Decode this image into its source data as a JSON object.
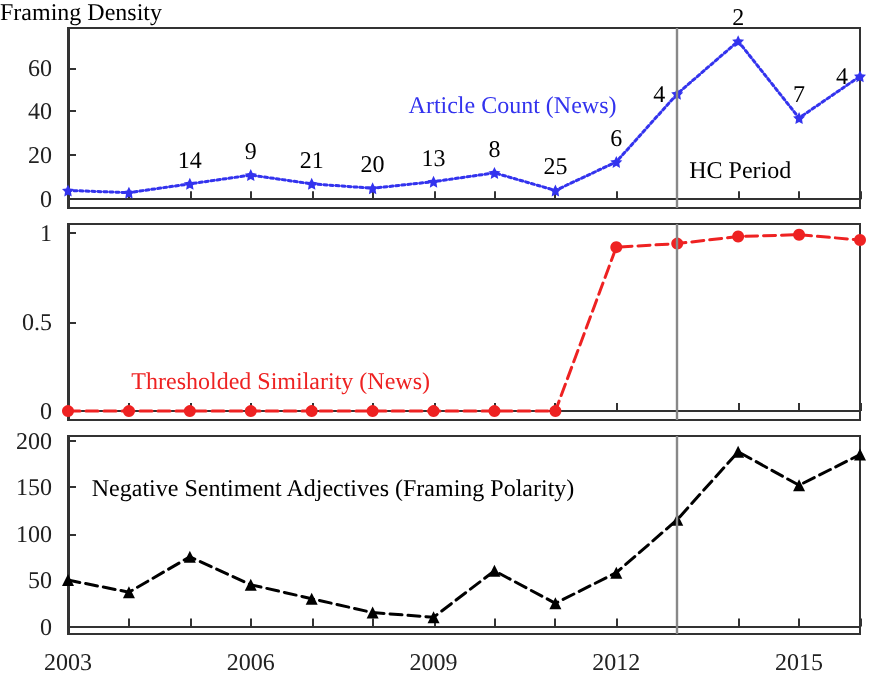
{
  "chart_data": [
    {
      "type": "line",
      "x": [
        2003,
        2004,
        2005,
        2006,
        2007,
        2008,
        2009,
        2010,
        2011,
        2012,
        2013,
        2014,
        2015,
        2016
      ],
      "series": [
        {
          "name": "Article Count (News)",
          "color": "#3333ee",
          "values": [
            4,
            3,
            7,
            11,
            7,
            5,
            8,
            12,
            4,
            17,
            48,
            72,
            37,
            56
          ],
          "marker": "star",
          "line_style": "dotted"
        }
      ],
      "xlim": [
        2003,
        2016
      ],
      "xticks": [
        2003,
        {
          "value": 2004,
          "label": null
        },
        {
          "value": 2005,
          "label": null
        },
        2006,
        {
          "value": 2007,
          "label": null
        },
        {
          "value": 2008,
          "label": null
        },
        2009,
        {
          "value": 2010,
          "label": null
        },
        {
          "value": 2011,
          "label": null
        },
        2012,
        {
          "value": 2013,
          "label": null
        },
        {
          "value": 2014,
          "label": null
        },
        2015,
        {
          "value": 2016,
          "label": null
        }
      ],
      "ylim": [
        -4,
        78
      ],
      "yticks": [
        0,
        20,
        40,
        60
      ],
      "tick_labels": "y",
      "grid": false,
      "ref_lines": [
        {
          "axis": "x",
          "value": 2013,
          "label": "HC Period",
          "color": "#888888"
        }
      ],
      "annotations": [
        "Framing Density",
        {
          "text": "14",
          "x": 2005,
          "y": 7
        },
        {
          "text": "9",
          "x": 2006,
          "y": 11
        },
        {
          "text": "21",
          "x": 2007,
          "y": 7
        },
        {
          "text": "20",
          "x": 2008,
          "y": 5
        },
        {
          "text": "13",
          "x": 2009,
          "y": 8
        },
        {
          "text": "8",
          "x": 2010,
          "y": 12
        },
        {
          "text": "25",
          "x": 2011,
          "y": 4
        },
        {
          "text": "6",
          "x": 2012,
          "y": 17
        },
        {
          "text": "4",
          "x": 2013,
          "y": 48
        },
        {
          "text": "2",
          "x": 2014,
          "y": 72
        },
        {
          "text": "7",
          "x": 2015,
          "y": 37
        },
        {
          "text": "4",
          "x": 2016,
          "y": 56
        }
      ]
    },
    {
      "type": "line",
      "x": [
        2003,
        2004,
        2005,
        2006,
        2007,
        2008,
        2009,
        2010,
        2011,
        2012,
        2013,
        2014,
        2015,
        2016
      ],
      "series": [
        {
          "name": "Thresholded Similarity (News)",
          "color": "#ee2222",
          "values": [
            0,
            0,
            0,
            0,
            0,
            0,
            0,
            0,
            0,
            0.92,
            0.94,
            0.98,
            0.99,
            0.96
          ],
          "marker": "circle",
          "line_style": "dashed"
        }
      ],
      "xlim": [
        2003,
        2016
      ],
      "xticks": [
        2003,
        {
          "value": 2004,
          "label": null
        },
        {
          "value": 2005,
          "label": null
        },
        2006,
        {
          "value": 2007,
          "label": null
        },
        {
          "value": 2008,
          "label": null
        },
        2009,
        {
          "value": 2010,
          "label": null
        },
        {
          "value": 2011,
          "label": null
        },
        2012,
        {
          "value": 2013,
          "label": null
        },
        {
          "value": 2014,
          "label": null
        },
        2015,
        {
          "value": 2016,
          "label": null
        }
      ],
      "ylim": [
        -0.05,
        1.05
      ],
      "yticks": [
        0,
        0.5,
        1
      ],
      "tick_labels": "y",
      "grid": false,
      "ref_lines": [
        {
          "axis": "x",
          "value": 2013,
          "color": "#888888"
        }
      ]
    },
    {
      "type": "line",
      "x": [
        2003,
        2004,
        2005,
        2006,
        2007,
        2008,
        2009,
        2010,
        2011,
        2012,
        2013,
        2014,
        2015,
        2016
      ],
      "series": [
        {
          "name": "Negative Sentiment Adjectives (Framing Polarity)",
          "color": "#000000",
          "values": [
            50,
            37,
            75,
            45,
            30,
            15,
            10,
            60,
            25,
            58,
            115,
            188,
            152,
            185
          ],
          "marker": "triangle",
          "line_style": "dashed"
        }
      ],
      "xlim": [
        2003,
        2016
      ],
      "xticks": [
        2003,
        {
          "value": 2004,
          "label": null
        },
        {
          "value": 2005,
          "label": null
        },
        2006,
        {
          "value": 2007,
          "label": null
        },
        {
          "value": 2008,
          "label": null
        },
        2009,
        {
          "value": 2010,
          "label": null
        },
        {
          "value": 2011,
          "label": null
        },
        2012,
        {
          "value": 2013,
          "label": null
        },
        {
          "value": 2014,
          "label": null
        },
        2015,
        {
          "value": 2016,
          "label": null
        }
      ],
      "ylim": [
        -8,
        205
      ],
      "yticks": [
        0,
        50,
        100,
        150,
        200
      ],
      "grid": false,
      "ref_lines": [
        {
          "axis": "x",
          "value": 2013,
          "color": "#888888"
        }
      ]
    }
  ]
}
